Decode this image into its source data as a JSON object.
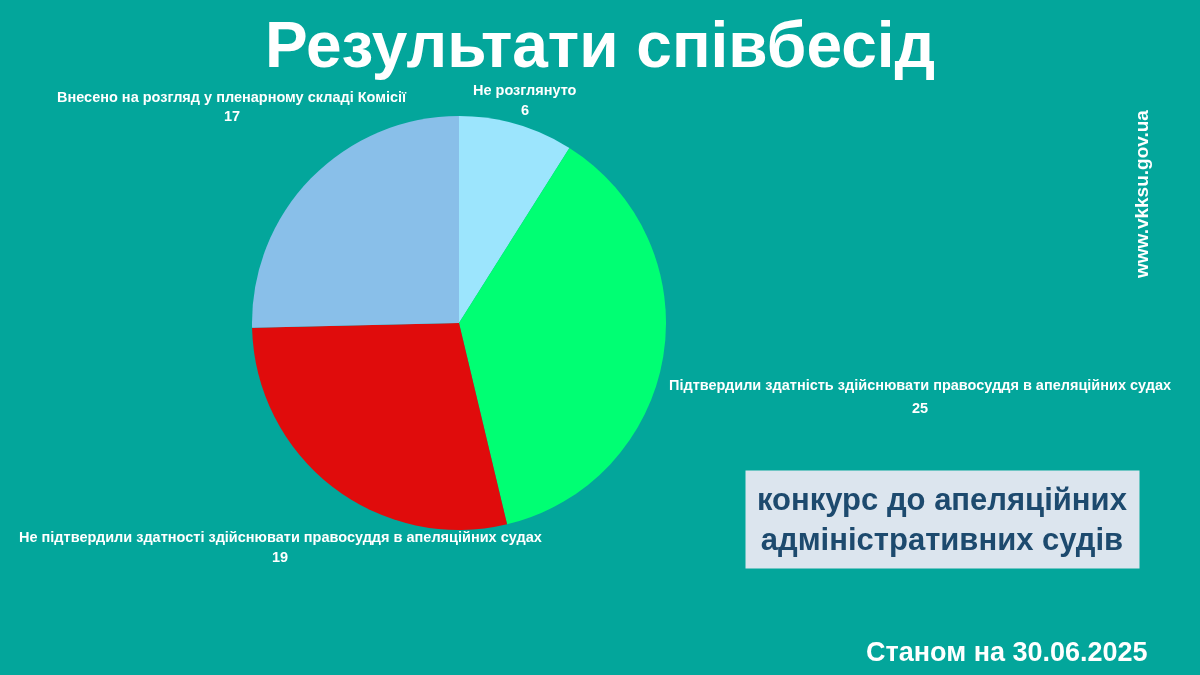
{
  "chart_data": {
    "type": "pie",
    "title": "Результати співбесід",
    "categories": [
      "Не розглянуто",
      "Підтвердили здатність здійснювати правосуддя в апеляційних судах",
      "Не підтвердили здатності здійснювати правосуддя в апеляційних судах",
      "Внесено на розгляд у пленарному складі Комісії"
    ],
    "values": [
      6,
      25,
      19,
      17
    ],
    "colors": [
      "#9ce5fd",
      "#00ff73",
      "#e00c0c",
      "#89bfe9"
    ],
    "data_labels": true,
    "legend": false,
    "annotations": [
      "конкурс до апеляційних\nадміністративних судів",
      "Станом на 30.06.2025",
      "www.vkksu.gov.ua"
    ]
  }
}
